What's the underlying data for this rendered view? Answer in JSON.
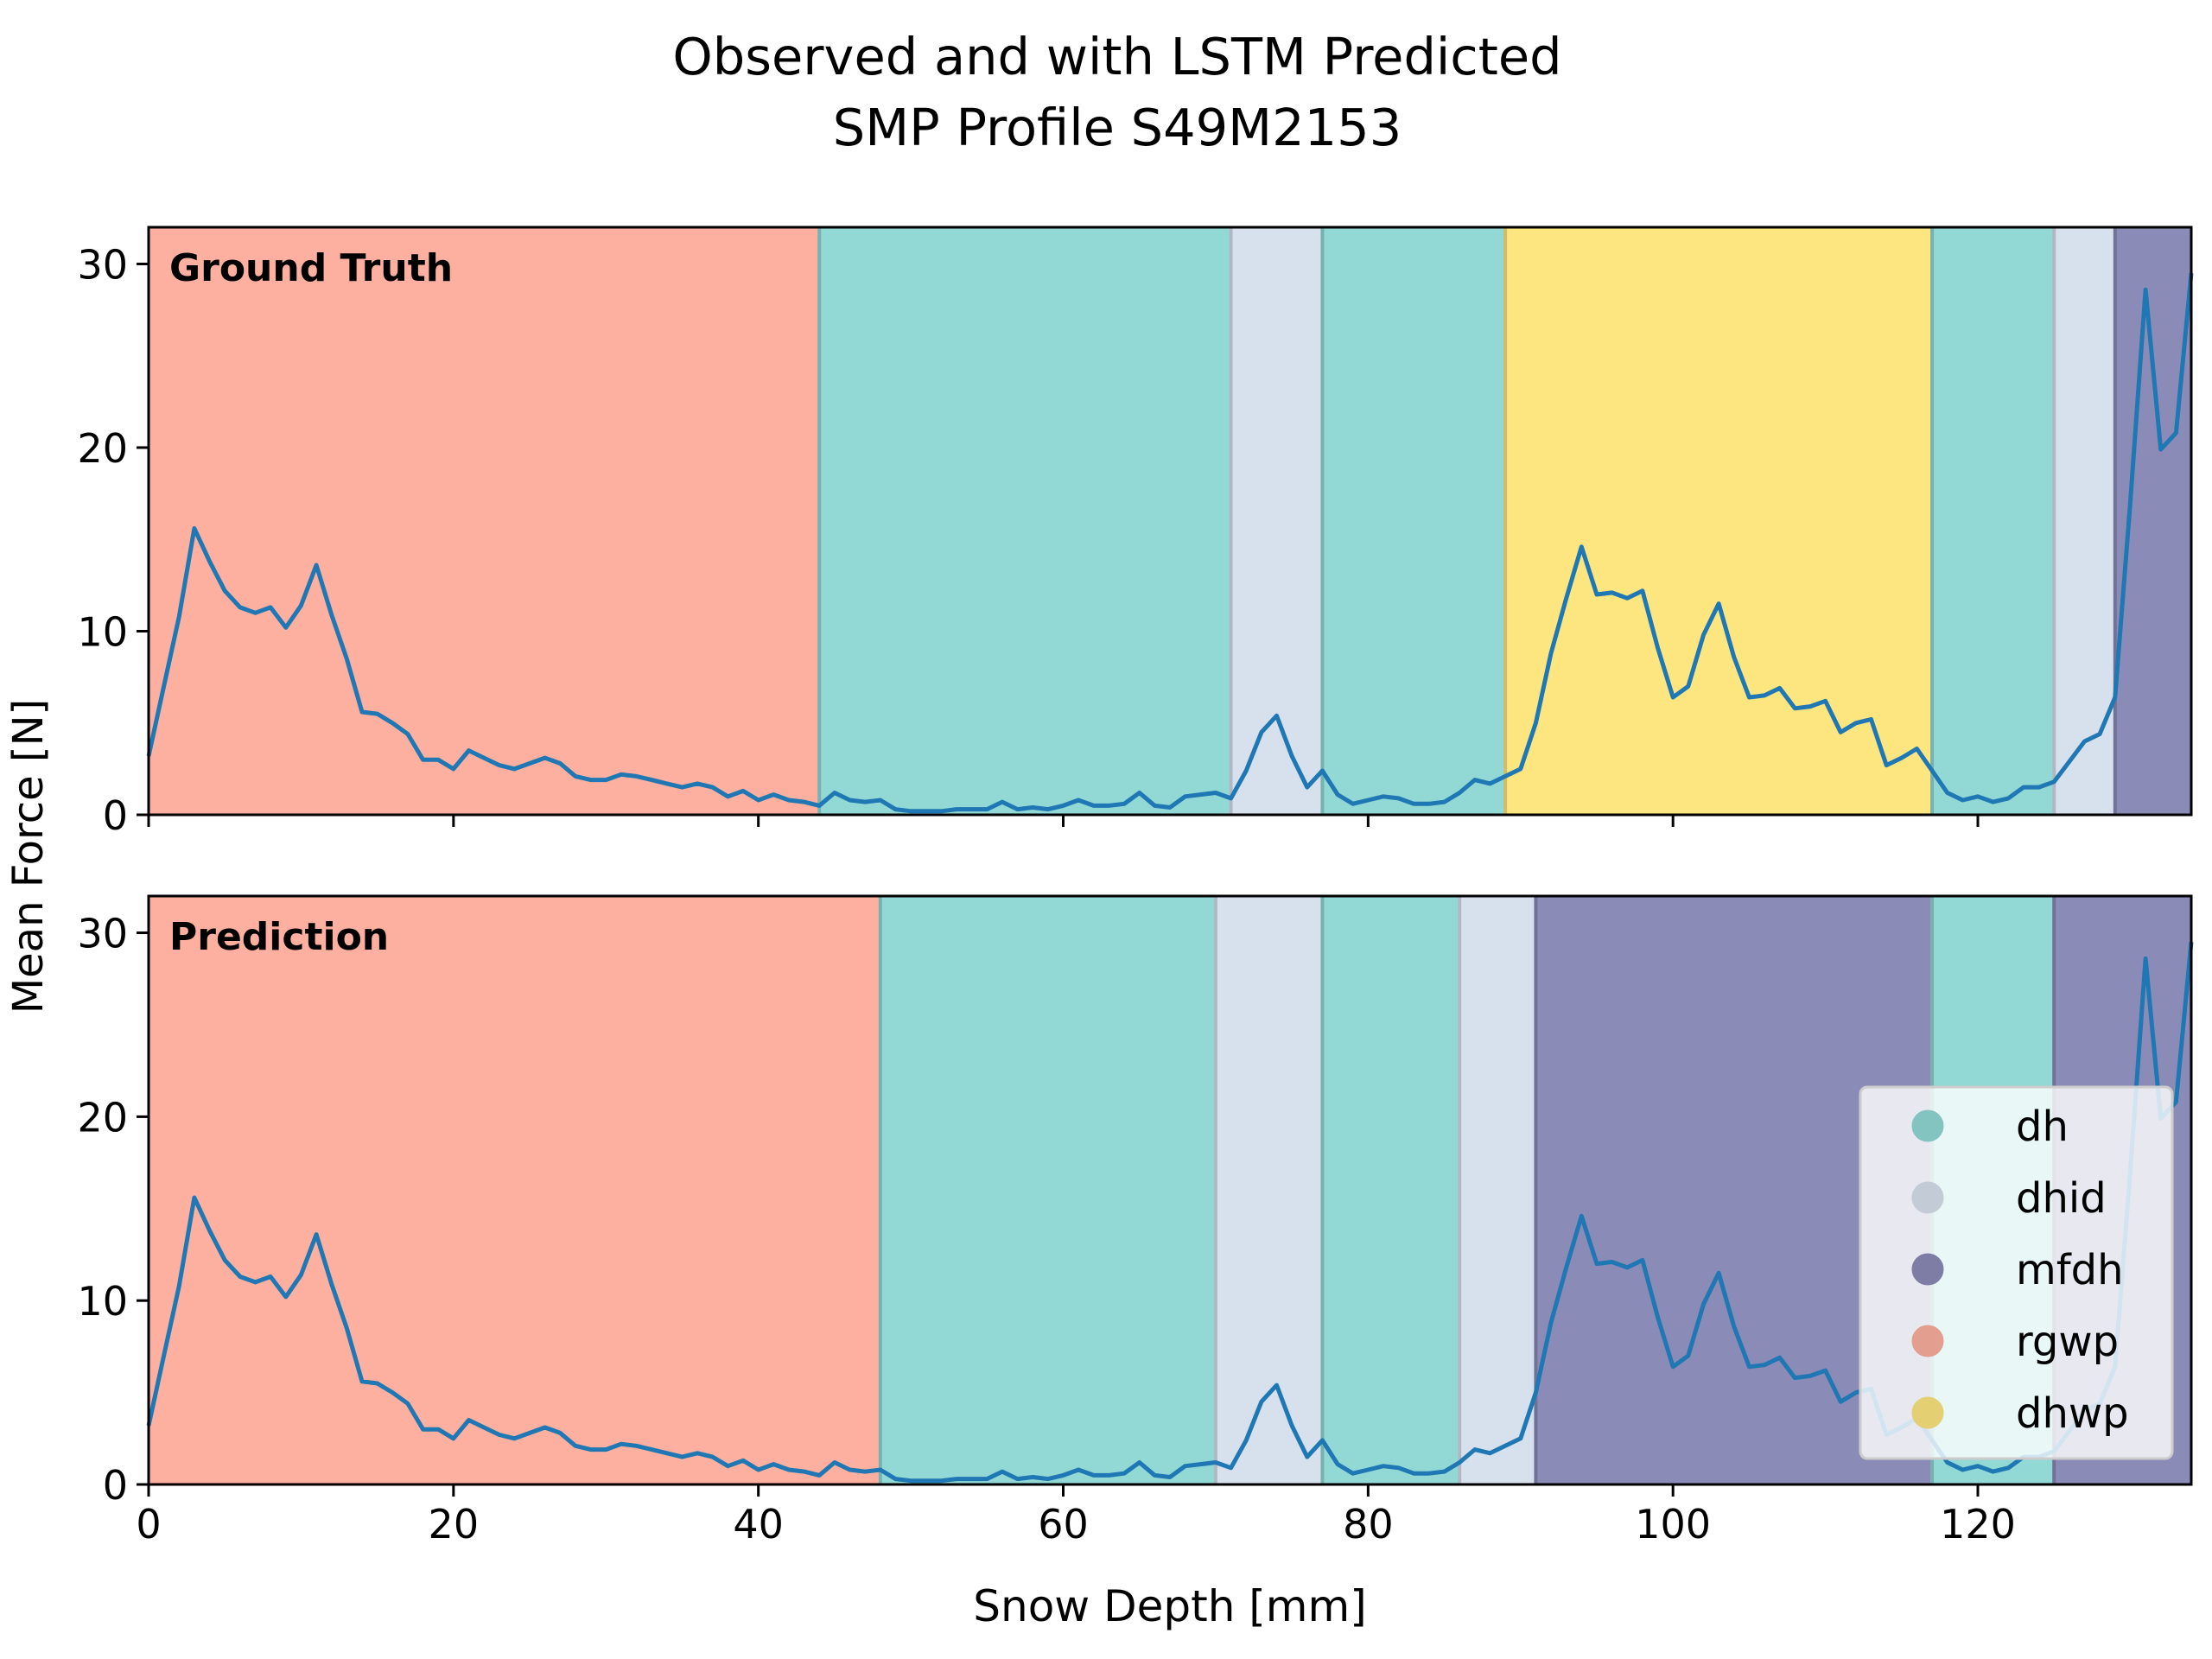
{
  "title_line1": "Observed and with LSTM Predicted",
  "title_line2": "SMP Profile S49M2153",
  "chart_data": {
    "type": "line",
    "xlabel": "Snow Depth [mm]",
    "ylabel": "Mean Force [N]",
    "xlim": [
      0,
      134
    ],
    "ylim": [
      0,
      32
    ],
    "xticks": [
      0,
      20,
      40,
      60,
      80,
      100,
      120
    ],
    "yticks": [
      0,
      10,
      20,
      30
    ],
    "line_color": "#1f77b4",
    "classes": [
      {
        "name": "dh",
        "color": "#92d9d5"
      },
      {
        "name": "dhid",
        "color": "#d7e1ee"
      },
      {
        "name": "mfdh",
        "color": "#8b8bb7"
      },
      {
        "name": "rgwp",
        "color": "#fdb09f"
      },
      {
        "name": "dhwp",
        "color": "#fde680"
      }
    ],
    "legend": {
      "entries": [
        "dh",
        "dhid",
        "mfdh",
        "rgwp",
        "dhwp"
      ],
      "placement": "lower-right of bottom panel"
    },
    "x": [
      0,
      1,
      2,
      3,
      4,
      5,
      6,
      7,
      8,
      9,
      10,
      11,
      12,
      13,
      14,
      15,
      16,
      17,
      18,
      19,
      20,
      21,
      22,
      23,
      24,
      25,
      26,
      27,
      28,
      29,
      30,
      31,
      32,
      33,
      34,
      35,
      36,
      37,
      38,
      39,
      40,
      41,
      42,
      43,
      44,
      45,
      46,
      47,
      48,
      49,
      50,
      51,
      52,
      53,
      54,
      55,
      56,
      57,
      58,
      59,
      60,
      61,
      62,
      63,
      64,
      65,
      66,
      67,
      68,
      69,
      70,
      71,
      72,
      73,
      74,
      75,
      76,
      77,
      78,
      79,
      80,
      81,
      82,
      83,
      84,
      85,
      86,
      87,
      88,
      89,
      90,
      91,
      92,
      93,
      94,
      95,
      96,
      97,
      98,
      99,
      100,
      101,
      102,
      103,
      104,
      105,
      106,
      107,
      108,
      109,
      110,
      111,
      112,
      113,
      114,
      115,
      116,
      117,
      118,
      119,
      120,
      121,
      122,
      123,
      124,
      125,
      126,
      127,
      128,
      129,
      130,
      131,
      132,
      133,
      134
    ],
    "force": [
      3.2,
      7.0,
      10.8,
      15.6,
      13.8,
      12.2,
      11.3,
      11.0,
      11.3,
      10.2,
      11.4,
      13.6,
      10.9,
      8.5,
      5.6,
      5.5,
      5.0,
      4.4,
      3.0,
      3.0,
      2.5,
      3.5,
      3.1,
      2.7,
      2.5,
      2.8,
      3.1,
      2.8,
      2.1,
      1.9,
      1.9,
      2.2,
      2.1,
      1.9,
      1.7,
      1.5,
      1.7,
      1.5,
      1.0,
      1.3,
      0.8,
      1.1,
      0.8,
      0.7,
      0.5,
      1.2,
      0.8,
      0.7,
      0.8,
      0.3,
      0.2,
      0.2,
      0.2,
      0.3,
      0.3,
      0.3,
      0.7,
      0.3,
      0.4,
      0.3,
      0.5,
      0.8,
      0.5,
      0.5,
      0.6,
      1.2,
      0.5,
      0.4,
      1.0,
      1.1,
      1.2,
      0.9,
      2.4,
      4.5,
      5.4,
      3.2,
      1.5,
      2.4,
      1.1,
      0.6,
      0.8,
      1.0,
      0.9,
      0.6,
      0.6,
      0.7,
      1.2,
      1.9,
      1.7,
      2.1,
      2.5,
      5.0,
      8.8,
      11.8,
      14.6,
      12.0,
      12.1,
      11.8,
      12.2,
      9.1,
      6.4,
      7.0,
      9.8,
      11.5,
      8.6,
      6.4,
      6.5,
      6.9,
      5.8,
      5.9,
      6.2,
      4.5,
      5.0,
      5.2,
      2.7,
      3.1,
      3.6,
      2.4,
      1.2,
      0.8,
      1.0,
      0.7,
      0.9,
      1.5,
      1.5,
      1.8,
      2.9,
      4.0,
      4.4,
      6.4,
      17.0,
      28.6,
      19.9,
      20.8,
      29.5
    ],
    "panels": [
      {
        "label": "Ground Truth",
        "segments": [
          {
            "from": 0,
            "to": 44,
            "class": "rgwp"
          },
          {
            "from": 44,
            "to": 71,
            "class": "dh"
          },
          {
            "from": 71,
            "to": 77,
            "class": "dhid"
          },
          {
            "from": 77,
            "to": 89,
            "class": "dh"
          },
          {
            "from": 89,
            "to": 117,
            "class": "dhwp"
          },
          {
            "from": 117,
            "to": 125,
            "class": "dh"
          },
          {
            "from": 125,
            "to": 129,
            "class": "dhid"
          },
          {
            "from": 129,
            "to": 134,
            "class": "mfdh"
          }
        ]
      },
      {
        "label": "Prediction",
        "segments": [
          {
            "from": 0,
            "to": 48,
            "class": "rgwp"
          },
          {
            "from": 48,
            "to": 70,
            "class": "dh"
          },
          {
            "from": 70,
            "to": 77,
            "class": "dhid"
          },
          {
            "from": 77,
            "to": 86,
            "class": "dh"
          },
          {
            "from": 86,
            "to": 91,
            "class": "dhid"
          },
          {
            "from": 91,
            "to": 117,
            "class": "mfdh"
          },
          {
            "from": 117,
            "to": 125,
            "class": "dh"
          },
          {
            "from": 125,
            "to": 134,
            "class": "mfdh"
          }
        ]
      }
    ]
  }
}
